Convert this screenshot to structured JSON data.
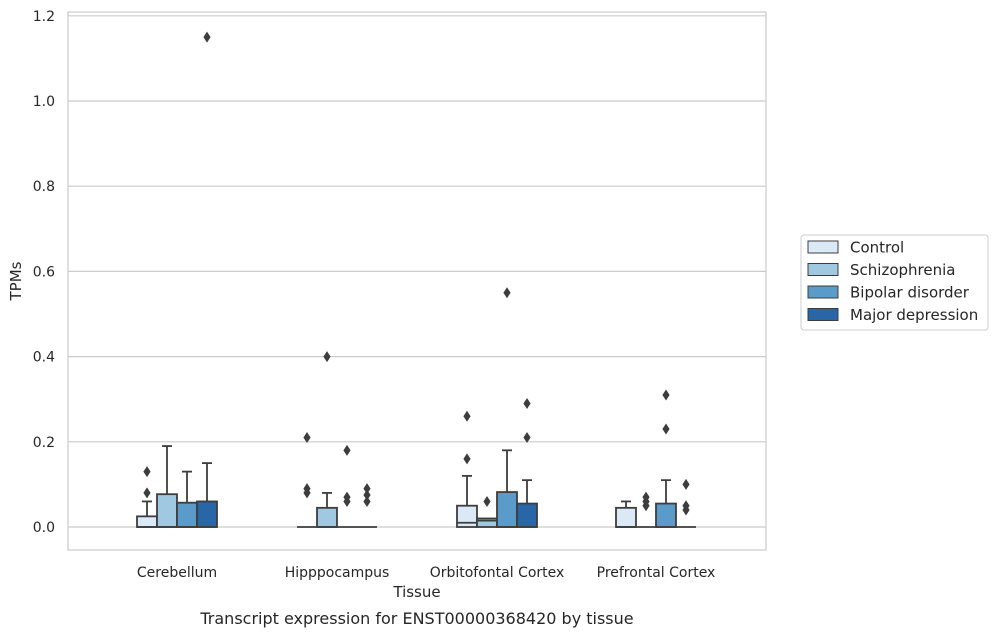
{
  "chart_data": {
    "type": "box",
    "title": "",
    "caption": "Transcript expression for ENST00000368420 by tissue",
    "xlabel": "Tissue",
    "ylabel": "TPMs",
    "ylim": [
      -0.055,
      1.21
    ],
    "yticks": [
      "0.0",
      "0.2",
      "0.4",
      "0.6",
      "0.8",
      "1.0",
      "1.2"
    ],
    "ytick_values": [
      0.0,
      0.2,
      0.4,
      0.6,
      0.8,
      1.0,
      1.2
    ],
    "grid": "horizontal",
    "legend_position": "right",
    "categories": [
      "Cerebellum",
      "Hipppocampus",
      "Orbitofontal Cortex",
      "Prefrontal Cortex"
    ],
    "series": [
      {
        "name": "Control",
        "color": "#dbe9f6",
        "boxes": [
          {
            "q1": 0.0,
            "median": 0.0,
            "q3": 0.025,
            "whislo": 0.0,
            "whishi": 0.06,
            "fliers": [
              0.08,
              0.13
            ]
          },
          {
            "q1": 0.0,
            "median": 0.0,
            "q3": 0.0,
            "whislo": 0.0,
            "whishi": 0.0,
            "fliers": [
              0.08,
              0.09,
              0.21
            ]
          },
          {
            "q1": 0.0,
            "median": 0.01,
            "q3": 0.05,
            "whislo": 0.0,
            "whishi": 0.12,
            "fliers": [
              0.16,
              0.26
            ]
          },
          {
            "q1": 0.0,
            "median": 0.0,
            "q3": 0.045,
            "whislo": 0.0,
            "whishi": 0.06,
            "fliers": []
          }
        ]
      },
      {
        "name": "Schizophrenia",
        "color": "#a0c8e0",
        "boxes": [
          {
            "q1": 0.0,
            "median": 0.0,
            "q3": 0.077,
            "whislo": 0.0,
            "whishi": 0.19,
            "fliers": []
          },
          {
            "q1": 0.0,
            "median": 0.0,
            "q3": 0.045,
            "whislo": 0.0,
            "whishi": 0.08,
            "fliers": [
              0.4
            ]
          },
          {
            "q1": 0.0,
            "median": 0.015,
            "q3": 0.02,
            "whislo": 0.0,
            "whishi": 0.02,
            "fliers": [
              0.06
            ]
          },
          {
            "q1": 0.0,
            "median": 0.0,
            "q3": 0.0,
            "whislo": 0.0,
            "whishi": 0.0,
            "fliers": [
              0.05,
              0.06,
              0.07
            ]
          }
        ]
      },
      {
        "name": "Bipolar disorder",
        "color": "#5a9bc9",
        "boxes": [
          {
            "q1": 0.0,
            "median": 0.0,
            "q3": 0.057,
            "whislo": 0.0,
            "whishi": 0.13,
            "fliers": []
          },
          {
            "q1": 0.0,
            "median": 0.0,
            "q3": 0.0,
            "whislo": 0.0,
            "whishi": 0.0,
            "fliers": [
              0.06,
              0.07,
              0.18
            ]
          },
          {
            "q1": 0.0,
            "median": 0.0,
            "q3": 0.082,
            "whislo": 0.0,
            "whishi": 0.18,
            "fliers": [
              0.55
            ]
          },
          {
            "q1": 0.0,
            "median": 0.0,
            "q3": 0.055,
            "whislo": 0.0,
            "whishi": 0.11,
            "fliers": [
              0.23,
              0.31
            ]
          }
        ]
      },
      {
        "name": "Major depression",
        "color": "#2866a8",
        "boxes": [
          {
            "q1": 0.0,
            "median": 0.0,
            "q3": 0.06,
            "whislo": 0.0,
            "whishi": 0.15,
            "fliers": [
              1.15
            ]
          },
          {
            "q1": 0.0,
            "median": 0.0,
            "q3": 0.0,
            "whislo": 0.0,
            "whishi": 0.0,
            "fliers": [
              0.06,
              0.075,
              0.09
            ]
          },
          {
            "q1": 0.0,
            "median": 0.0,
            "q3": 0.055,
            "whislo": 0.0,
            "whishi": 0.11,
            "fliers": [
              0.21,
              0.29
            ]
          },
          {
            "q1": 0.0,
            "median": 0.0,
            "q3": 0.0,
            "whislo": 0.0,
            "whishi": 0.0,
            "fliers": [
              0.04,
              0.05,
              0.1
            ]
          }
        ]
      }
    ]
  }
}
